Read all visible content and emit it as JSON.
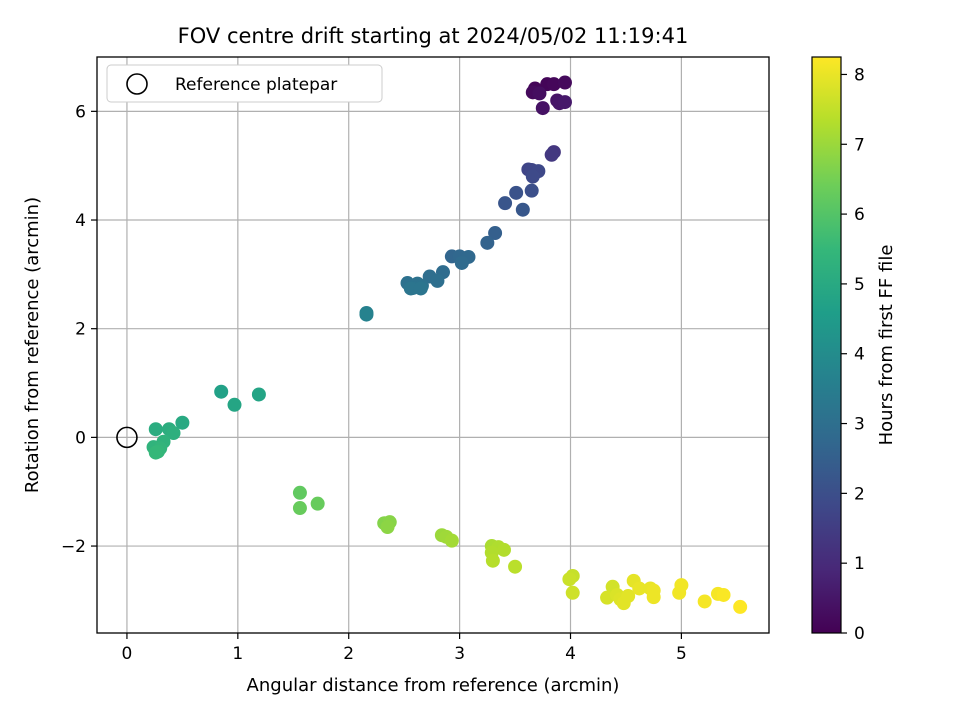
{
  "chart_data": {
    "type": "scatter",
    "title": "FOV centre drift starting at 2024/05/02 11:19:41",
    "xlabel": "Angular distance from reference (arcmin)",
    "ylabel": "Rotation from reference (arcmin)",
    "xlim": [
      -0.27,
      5.79
    ],
    "ylim": [
      -3.6,
      7.0
    ],
    "xticks": [
      0,
      1,
      2,
      3,
      4,
      5
    ],
    "yticks": [
      -2,
      0,
      2,
      4,
      6
    ],
    "ytick_labels": [
      "−2",
      "0",
      "2",
      "4",
      "6"
    ],
    "grid": true,
    "legend": {
      "position": "top-left",
      "label": "Reference platepar"
    },
    "reference_point": {
      "x": 0,
      "y": 0
    },
    "colorbar": {
      "label": "Hours from first FF file",
      "range": [
        0,
        8.25
      ],
      "ticks": [
        0,
        1,
        2,
        3,
        4,
        5,
        6,
        7,
        8
      ],
      "colormap": "viridis"
    },
    "points": [
      {
        "x": 3.68,
        "y": 6.42,
        "h": 0.1
      },
      {
        "x": 3.79,
        "y": 6.5,
        "h": 0.1
      },
      {
        "x": 3.85,
        "y": 6.5,
        "h": 0.15
      },
      {
        "x": 3.95,
        "y": 6.53,
        "h": 0.2
      },
      {
        "x": 3.66,
        "y": 6.35,
        "h": 0.2
      },
      {
        "x": 3.72,
        "y": 6.33,
        "h": 0.3
      },
      {
        "x": 3.75,
        "y": 6.06,
        "h": 0.4
      },
      {
        "x": 3.88,
        "y": 6.2,
        "h": 0.45
      },
      {
        "x": 3.9,
        "y": 6.15,
        "h": 0.5
      },
      {
        "x": 3.95,
        "y": 6.17,
        "h": 0.55
      },
      {
        "x": 3.85,
        "y": 5.25,
        "h": 1.3
      },
      {
        "x": 3.83,
        "y": 5.2,
        "h": 1.35
      },
      {
        "x": 3.62,
        "y": 4.93,
        "h": 1.7
      },
      {
        "x": 3.65,
        "y": 4.92,
        "h": 1.75
      },
      {
        "x": 3.71,
        "y": 4.9,
        "h": 1.8
      },
      {
        "x": 3.66,
        "y": 4.8,
        "h": 1.85
      },
      {
        "x": 3.65,
        "y": 4.54,
        "h": 2.0
      },
      {
        "x": 3.51,
        "y": 4.5,
        "h": 2.1
      },
      {
        "x": 3.41,
        "y": 4.31,
        "h": 2.2
      },
      {
        "x": 3.57,
        "y": 4.19,
        "h": 2.25
      },
      {
        "x": 3.32,
        "y": 3.76,
        "h": 2.5
      },
      {
        "x": 3.25,
        "y": 3.58,
        "h": 2.6
      },
      {
        "x": 2.93,
        "y": 3.33,
        "h": 2.7
      },
      {
        "x": 3.0,
        "y": 3.33,
        "h": 2.75
      },
      {
        "x": 3.08,
        "y": 3.32,
        "h": 2.8
      },
      {
        "x": 3.02,
        "y": 3.21,
        "h": 2.85
      },
      {
        "x": 2.85,
        "y": 3.04,
        "h": 2.9
      },
      {
        "x": 2.73,
        "y": 2.96,
        "h": 2.95
      },
      {
        "x": 2.8,
        "y": 2.88,
        "h": 3.0
      },
      {
        "x": 2.53,
        "y": 2.84,
        "h": 3.05
      },
      {
        "x": 2.62,
        "y": 2.83,
        "h": 3.1
      },
      {
        "x": 2.66,
        "y": 2.79,
        "h": 3.1
      },
      {
        "x": 2.58,
        "y": 2.75,
        "h": 3.15
      },
      {
        "x": 2.56,
        "y": 2.74,
        "h": 3.2
      },
      {
        "x": 2.65,
        "y": 2.74,
        "h": 3.2
      },
      {
        "x": 2.16,
        "y": 2.29,
        "h": 3.6
      },
      {
        "x": 2.16,
        "y": 2.26,
        "h": 3.65
      },
      {
        "x": 0.85,
        "y": 0.84,
        "h": 4.7
      },
      {
        "x": 1.19,
        "y": 0.79,
        "h": 4.8
      },
      {
        "x": 0.97,
        "y": 0.6,
        "h": 4.85
      },
      {
        "x": 0.5,
        "y": 0.27,
        "h": 5.0
      },
      {
        "x": 0.26,
        "y": 0.15,
        "h": 5.1
      },
      {
        "x": 0.38,
        "y": 0.15,
        "h": 5.15
      },
      {
        "x": 0.42,
        "y": 0.08,
        "h": 5.2
      },
      {
        "x": 0.33,
        "y": -0.08,
        "h": 5.3
      },
      {
        "x": 0.24,
        "y": -0.18,
        "h": 5.35
      },
      {
        "x": 0.3,
        "y": -0.2,
        "h": 5.4
      },
      {
        "x": 0.28,
        "y": -0.26,
        "h": 5.45
      },
      {
        "x": 0.26,
        "y": -0.28,
        "h": 5.5
      },
      {
        "x": 1.56,
        "y": -1.02,
        "h": 6.2
      },
      {
        "x": 1.72,
        "y": -1.22,
        "h": 6.3
      },
      {
        "x": 1.56,
        "y": -1.3,
        "h": 6.3
      },
      {
        "x": 2.32,
        "y": -1.58,
        "h": 6.7
      },
      {
        "x": 2.37,
        "y": -1.56,
        "h": 6.75
      },
      {
        "x": 2.35,
        "y": -1.65,
        "h": 6.8
      },
      {
        "x": 2.84,
        "y": -1.8,
        "h": 7.0
      },
      {
        "x": 2.88,
        "y": -1.83,
        "h": 7.05
      },
      {
        "x": 2.93,
        "y": -1.9,
        "h": 7.1
      },
      {
        "x": 3.29,
        "y": -2.0,
        "h": 7.2
      },
      {
        "x": 3.35,
        "y": -2.02,
        "h": 7.25
      },
      {
        "x": 3.4,
        "y": -2.07,
        "h": 7.3
      },
      {
        "x": 3.29,
        "y": -2.12,
        "h": 7.3
      },
      {
        "x": 3.3,
        "y": -2.27,
        "h": 7.35
      },
      {
        "x": 3.5,
        "y": -2.38,
        "h": 7.4
      },
      {
        "x": 4.02,
        "y": -2.55,
        "h": 7.55
      },
      {
        "x": 3.99,
        "y": -2.61,
        "h": 7.6
      },
      {
        "x": 4.02,
        "y": -2.86,
        "h": 7.65
      },
      {
        "x": 4.38,
        "y": -2.75,
        "h": 7.7
      },
      {
        "x": 4.33,
        "y": -2.95,
        "h": 7.75
      },
      {
        "x": 4.42,
        "y": -2.9,
        "h": 7.8
      },
      {
        "x": 4.45,
        "y": -2.98,
        "h": 7.85
      },
      {
        "x": 4.48,
        "y": -3.05,
        "h": 7.9
      },
      {
        "x": 4.52,
        "y": -2.92,
        "h": 7.9
      },
      {
        "x": 4.57,
        "y": -2.64,
        "h": 7.95
      },
      {
        "x": 4.62,
        "y": -2.78,
        "h": 8.0
      },
      {
        "x": 4.72,
        "y": -2.78,
        "h": 8.0
      },
      {
        "x": 4.75,
        "y": -2.82,
        "h": 8.05
      },
      {
        "x": 4.75,
        "y": -2.94,
        "h": 8.05
      },
      {
        "x": 5.0,
        "y": -2.72,
        "h": 8.1
      },
      {
        "x": 4.98,
        "y": -2.86,
        "h": 8.1
      },
      {
        "x": 5.21,
        "y": -3.02,
        "h": 8.15
      },
      {
        "x": 5.33,
        "y": -2.88,
        "h": 8.15
      },
      {
        "x": 5.38,
        "y": -2.9,
        "h": 8.2
      },
      {
        "x": 5.53,
        "y": -3.12,
        "h": 8.25
      }
    ]
  }
}
